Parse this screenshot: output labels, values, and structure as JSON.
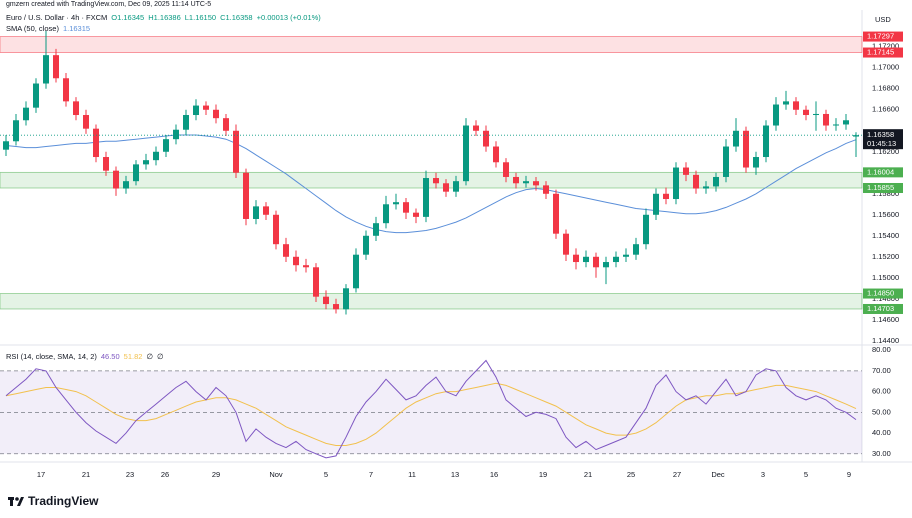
{
  "page": {
    "caption": "gmzern created with TradingView.com, Dec 09, 2025 11:14 UTC-5",
    "brand": "TradingView"
  },
  "chart_data": [
    {
      "type": "candlestick",
      "title": "Euro / U.S. Dollar · 4h · FXCM",
      "ohlc_labels": [
        "O1.16345",
        "H1.16386",
        "L1.16150",
        "C1.16358"
      ],
      "change_label": "+0.00013 (+0.01%)",
      "currency": "USD",
      "countdown": "01:45:13",
      "up_color": "#089981",
      "down_color": "#f23645",
      "xlim": [
        -0.6,
        85.6
      ],
      "ylim": [
        1.1436,
        1.1755
      ],
      "yticks": [
        {
          "value": 1.144,
          "label": "1.14400"
        },
        {
          "value": 1.146,
          "label": "1.14600"
        },
        {
          "value": 1.148,
          "label": "1.14800"
        },
        {
          "value": 1.15,
          "label": "1.15000"
        },
        {
          "value": 1.152,
          "label": "1.15200"
        },
        {
          "value": 1.154,
          "label": "1.15400"
        },
        {
          "value": 1.156,
          "label": "1.15600"
        },
        {
          "value": 1.158,
          "label": "1.15800"
        },
        {
          "value": 1.162,
          "label": "1.16200"
        },
        {
          "value": 1.166,
          "label": "1.16600"
        },
        {
          "value": 1.168,
          "label": "1.16800"
        },
        {
          "value": 1.17,
          "label": "1.17000"
        },
        {
          "value": 1.172,
          "label": "1.17200"
        }
      ],
      "open": [
        1.1622,
        1.163,
        1.165,
        1.1662,
        1.1685,
        1.1712,
        1.169,
        1.1668,
        1.1655,
        1.1642,
        1.1615,
        1.1602,
        1.1585,
        1.1592,
        1.1608,
        1.1612,
        1.162,
        1.1632,
        1.1641,
        1.1655,
        1.1664,
        1.166,
        1.1652,
        1.164,
        1.16,
        1.1556,
        1.1568,
        1.156,
        1.1532,
        1.152,
        1.1512,
        1.151,
        1.1482,
        1.1475,
        1.147,
        1.149,
        1.1522,
        1.154,
        1.1552,
        1.157,
        1.1572,
        1.1562,
        1.1558,
        1.1595,
        1.159,
        1.1582,
        1.1592,
        1.1645,
        1.164,
        1.1625,
        1.161,
        1.1596,
        1.159,
        1.1592,
        1.1588,
        1.158,
        1.1542,
        1.1522,
        1.1515,
        1.152,
        1.151,
        1.1515,
        1.152,
        1.1522,
        1.1532,
        1.156,
        1.158,
        1.1575,
        1.1605,
        1.1598,
        1.1585,
        1.1587,
        1.1596,
        1.1625,
        1.164,
        1.1605,
        1.1615,
        1.1645,
        1.1665,
        1.1668,
        1.166,
        1.1655,
        1.1656,
        1.1645,
        1.1646,
        1.16345
      ],
      "high": [
        1.1636,
        1.1656,
        1.1668,
        1.169,
        1.1735,
        1.1718,
        1.1695,
        1.1672,
        1.166,
        1.1646,
        1.162,
        1.1606,
        1.1597,
        1.1612,
        1.1618,
        1.1625,
        1.1636,
        1.1646,
        1.166,
        1.167,
        1.1668,
        1.1665,
        1.1656,
        1.1646,
        1.1604,
        1.1574,
        1.1572,
        1.1564,
        1.1538,
        1.1526,
        1.1518,
        1.1514,
        1.1488,
        1.148,
        1.1494,
        1.1528,
        1.1545,
        1.1558,
        1.1578,
        1.158,
        1.1576,
        1.1566,
        1.1602,
        1.16,
        1.1594,
        1.1597,
        1.1652,
        1.165,
        1.1645,
        1.163,
        1.1614,
        1.16,
        1.1597,
        1.1596,
        1.1592,
        1.1584,
        1.1546,
        1.1528,
        1.1526,
        1.1524,
        1.152,
        1.1525,
        1.1528,
        1.1538,
        1.1566,
        1.1585,
        1.1586,
        1.161,
        1.161,
        1.1602,
        1.1592,
        1.16,
        1.1632,
        1.1652,
        1.1644,
        1.162,
        1.165,
        1.1672,
        1.1678,
        1.1672,
        1.1664,
        1.1668,
        1.166,
        1.1652,
        1.1656,
        1.16386
      ],
      "low": [
        1.1616,
        1.1626,
        1.1645,
        1.1657,
        1.168,
        1.1686,
        1.1663,
        1.165,
        1.1637,
        1.161,
        1.1597,
        1.1578,
        1.158,
        1.1588,
        1.1603,
        1.1607,
        1.1615,
        1.1627,
        1.1636,
        1.165,
        1.1655,
        1.1647,
        1.1635,
        1.1595,
        1.155,
        1.1551,
        1.1555,
        1.1527,
        1.1515,
        1.1506,
        1.1505,
        1.1477,
        1.147,
        1.1466,
        1.1465,
        1.1486,
        1.1517,
        1.1535,
        1.1547,
        1.1565,
        1.1556,
        1.1552,
        1.1553,
        1.1585,
        1.1577,
        1.1577,
        1.1588,
        1.1635,
        1.162,
        1.1605,
        1.1591,
        1.1585,
        1.1586,
        1.1583,
        1.1575,
        1.1537,
        1.1516,
        1.1508,
        1.151,
        1.15,
        1.1494,
        1.151,
        1.1515,
        1.1517,
        1.1527,
        1.1555,
        1.157,
        1.157,
        1.1592,
        1.158,
        1.158,
        1.1582,
        1.1591,
        1.162,
        1.16,
        1.1598,
        1.161,
        1.164,
        1.166,
        1.1655,
        1.165,
        1.164,
        1.164,
        1.164,
        1.1641,
        1.1615
      ],
      "close": [
        1.163,
        1.165,
        1.1662,
        1.1685,
        1.1712,
        1.169,
        1.1668,
        1.1655,
        1.1642,
        1.1615,
        1.1602,
        1.1585,
        1.1592,
        1.1608,
        1.1612,
        1.162,
        1.1632,
        1.1641,
        1.1655,
        1.1664,
        1.166,
        1.1652,
        1.164,
        1.16,
        1.1556,
        1.1568,
        1.156,
        1.1532,
        1.152,
        1.1512,
        1.151,
        1.1482,
        1.1475,
        1.147,
        1.149,
        1.1522,
        1.154,
        1.1552,
        1.157,
        1.1572,
        1.1562,
        1.1558,
        1.1595,
        1.159,
        1.1582,
        1.1592,
        1.1645,
        1.164,
        1.1625,
        1.161,
        1.1596,
        1.159,
        1.1592,
        1.1588,
        1.158,
        1.1542,
        1.1522,
        1.1515,
        1.152,
        1.151,
        1.1515,
        1.152,
        1.1522,
        1.1532,
        1.156,
        1.158,
        1.1575,
        1.1605,
        1.1598,
        1.1585,
        1.1587,
        1.1596,
        1.1625,
        1.164,
        1.1605,
        1.1615,
        1.1645,
        1.1665,
        1.1668,
        1.166,
        1.1655,
        1.1656,
        1.1645,
        1.1646,
        1.165,
        1.16358
      ],
      "sma": {
        "name": "SMA (50, close)",
        "color": "#5b8fd9",
        "values": [
          1.1626,
          1.1625,
          1.1624,
          1.1624,
          1.1625,
          1.1626,
          1.1627,
          1.1628,
          1.1628,
          1.1629,
          1.163,
          1.163,
          1.1631,
          1.1632,
          1.1633,
          1.1634,
          1.1635,
          1.1636,
          1.1636,
          1.1636,
          1.1635,
          1.1634,
          1.1632,
          1.1628,
          1.1623,
          1.1617,
          1.1611,
          1.1605,
          1.1599,
          1.1592,
          1.1585,
          1.1578,
          1.1571,
          1.1564,
          1.1558,
          1.1553,
          1.1549,
          1.1546,
          1.1544,
          1.1543,
          1.1543,
          1.1544,
          1.1545,
          1.1547,
          1.155,
          1.1553,
          1.1557,
          1.1562,
          1.1567,
          1.1572,
          1.1577,
          1.1581,
          1.1584,
          1.1585,
          1.1584,
          1.1582,
          1.158,
          1.1578,
          1.1576,
          1.1574,
          1.1572,
          1.157,
          1.1568,
          1.1566,
          1.1565,
          1.1564,
          1.1563,
          1.1562,
          1.1561,
          1.1561,
          1.1562,
          1.1564,
          1.1567,
          1.1571,
          1.1575,
          1.158,
          1.1586,
          1.1592,
          1.1598,
          1.1604,
          1.1609,
          1.1614,
          1.1619,
          1.1623,
          1.1628,
          1.16315
        ]
      },
      "zones": [
        {
          "color": "#f23645",
          "edges": [
            {
              "value": 1.17297,
              "label": "1.17297"
            },
            {
              "value": 1.17145,
              "label": "1.17145"
            }
          ]
        },
        {
          "color": "#4caf50",
          "edges": [
            {
              "value": 1.16004,
              "label": "1.16004"
            },
            {
              "value": 1.15855,
              "label": "1.15855"
            }
          ]
        },
        {
          "color": "#4caf50",
          "edges": [
            {
              "value": 1.1485,
              "label": "1.14850"
            },
            {
              "value": 1.14703,
              "label": "1.14703"
            }
          ]
        }
      ]
    },
    {
      "type": "line",
      "title": "RSI (14, close, SMA, 14, 2)",
      "header_values": [
        "46.50",
        "51.82",
        "∅",
        "∅"
      ],
      "xlim": [
        -0.6,
        85.6
      ],
      "xticks": [
        {
          "value": 3.5,
          "label": "17"
        },
        {
          "value": 8,
          "label": "21"
        },
        {
          "value": 12.4,
          "label": "23"
        },
        {
          "value": 15.9,
          "label": "26"
        },
        {
          "value": 21,
          "label": "29"
        },
        {
          "value": 27,
          "label": "Nov"
        },
        {
          "value": 32,
          "label": "5"
        },
        {
          "value": 36.5,
          "label": "7"
        },
        {
          "value": 40.6,
          "label": "11"
        },
        {
          "value": 44.9,
          "label": "13"
        },
        {
          "value": 48.8,
          "label": "16"
        },
        {
          "value": 53.7,
          "label": "19"
        },
        {
          "value": 58.2,
          "label": "21"
        },
        {
          "value": 62.5,
          "label": "25"
        },
        {
          "value": 67.1,
          "label": "27"
        },
        {
          "value": 71.2,
          "label": "Dec"
        },
        {
          "value": 75.7,
          "label": "3"
        },
        {
          "value": 80,
          "label": "5"
        },
        {
          "value": 84.3,
          "label": "9"
        }
      ],
      "ylim": [
        27,
        82.5
      ],
      "yticks": [
        {
          "value": 30,
          "label": "30.00"
        },
        {
          "value": 40,
          "label": "40.00"
        },
        {
          "value": 50,
          "label": "50.00"
        },
        {
          "value": 60,
          "label": "60.00"
        },
        {
          "value": 70,
          "label": "70.00"
        },
        {
          "value": 80,
          "label": "80.00"
        }
      ],
      "band": [
        30,
        70
      ],
      "midline": 50,
      "band_color": "#7e57c2",
      "series": [
        {
          "color": "#7e57c2",
          "values": [
            58,
            62,
            66,
            71,
            70,
            62,
            56,
            50,
            45,
            41,
            38,
            35,
            40,
            46,
            50,
            54,
            58,
            62,
            65,
            60,
            56,
            62,
            58,
            50,
            36,
            42,
            38,
            35,
            33,
            36,
            32,
            30,
            28,
            29,
            38,
            48,
            55,
            60,
            66,
            61,
            56,
            58,
            63,
            67,
            60,
            58,
            65,
            70,
            75,
            67,
            56,
            52,
            48,
            50,
            49,
            47,
            38,
            33,
            36,
            32,
            34,
            36,
            38,
            45,
            52,
            63,
            68,
            60,
            56,
            58,
            54,
            60,
            66,
            58,
            60,
            68,
            71,
            70,
            62,
            58,
            56,
            58,
            56,
            52,
            50,
            46.5
          ]
        },
        {
          "color": "#f2c14e",
          "values": [
            58,
            59,
            60,
            61,
            62,
            62,
            61,
            60,
            58,
            55,
            52,
            49,
            47,
            46,
            46,
            47,
            49,
            51,
            53,
            55,
            56,
            57,
            57,
            56,
            54,
            52,
            49,
            46,
            43,
            41,
            39,
            37,
            35,
            34,
            34,
            35,
            37,
            40,
            44,
            48,
            52,
            55,
            57,
            59,
            60,
            60,
            61,
            62,
            63,
            64,
            63,
            61,
            59,
            57,
            55,
            53,
            50,
            47,
            44,
            42,
            40,
            39,
            39,
            40,
            42,
            45,
            49,
            53,
            56,
            57,
            58,
            58,
            59,
            59,
            60,
            61,
            62,
            63,
            63,
            62,
            61,
            60,
            58,
            56,
            54,
            51.82
          ]
        }
      ]
    }
  ]
}
